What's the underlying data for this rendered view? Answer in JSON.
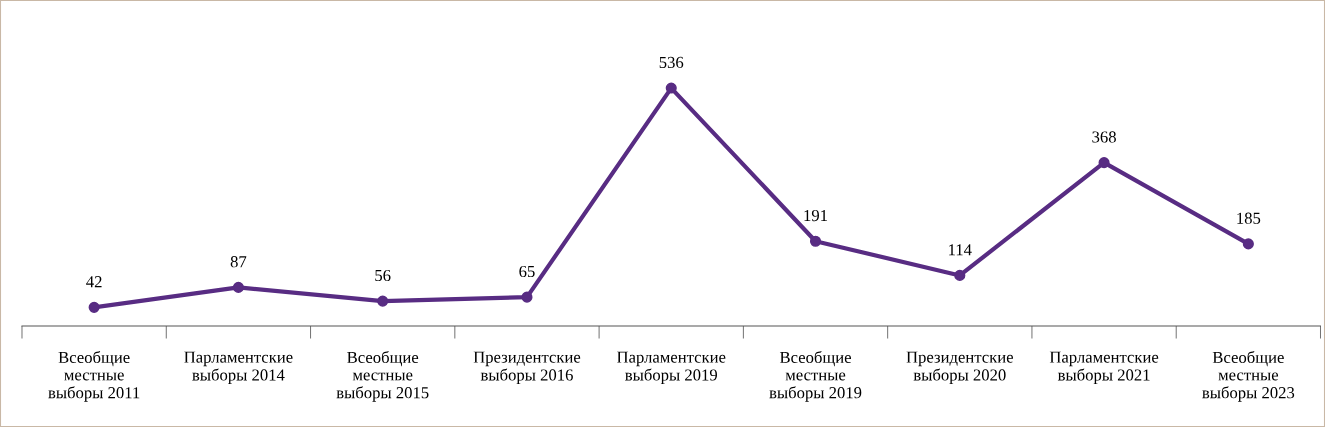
{
  "chart_data": {
    "type": "line",
    "categories": [
      "Всеобщие\nместные\nвыборы 2011",
      "Парламентские\nвыборы 2014",
      "Всеобщие\nместные\nвыборы 2015",
      "Президентские\nвыборы 2016",
      "Парламентские\nвыборы 2019",
      "Всеобщие\nместные\nвыборы 2019",
      "Президентские\nвыборы 2020",
      "Парламентские\nвыборы 2021",
      "Всеобщие\nместные\nвыборы 2023"
    ],
    "series": [
      {
        "color": "#582c83",
        "values": [
          42,
          87,
          56,
          65,
          536,
          191,
          114,
          368,
          185
        ]
      }
    ],
    "data_labels": true,
    "marker": "circle",
    "line_style": "solid",
    "grid": false,
    "legend": false,
    "tick_labels": "x"
  }
}
